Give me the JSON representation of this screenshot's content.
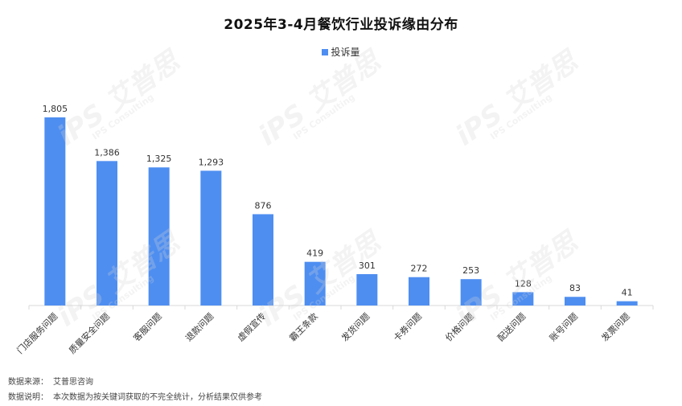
{
  "colors": {
    "bar": "#4e8ef1",
    "axis": "#d9d9d9",
    "label": "#333333"
  },
  "chart_data": {
    "type": "bar",
    "title": "2025年3-4月餐饮行业投诉缘由分布",
    "legend": {
      "position": "top-center",
      "entries": [
        "投诉量"
      ]
    },
    "categories": [
      "门店服务问题",
      "质量安全问题",
      "客服问题",
      "退款问题",
      "虚假宣传",
      "霸王条款",
      "发货问题",
      "卡券问题",
      "价格问题",
      "配送问题",
      "账号问题",
      "发票问题"
    ],
    "series": [
      {
        "name": "投诉量",
        "values": [
          1805,
          1386,
          1325,
          1293,
          876,
          419,
          301,
          272,
          253,
          128,
          83,
          41
        ]
      }
    ],
    "data_labels": [
      "1,805",
      "1,386",
      "1,325",
      "1,293",
      "876",
      "419",
      "301",
      "272",
      "253",
      "128",
      "83",
      "41"
    ],
    "ylim": [
      0,
      1805
    ],
    "grid": false,
    "xlabel": "",
    "ylabel": ""
  },
  "footer": {
    "source_label": "数据来源：",
    "source_value": "艾普思咨询",
    "note_label": "数据说明：",
    "note_value": "本次数据为按关键词获取的不完全统计，分析结果仅供参考"
  },
  "watermark": {
    "brand_cn": "艾普思",
    "brand_en": "IPS Consulting",
    "mark": "iPS"
  }
}
